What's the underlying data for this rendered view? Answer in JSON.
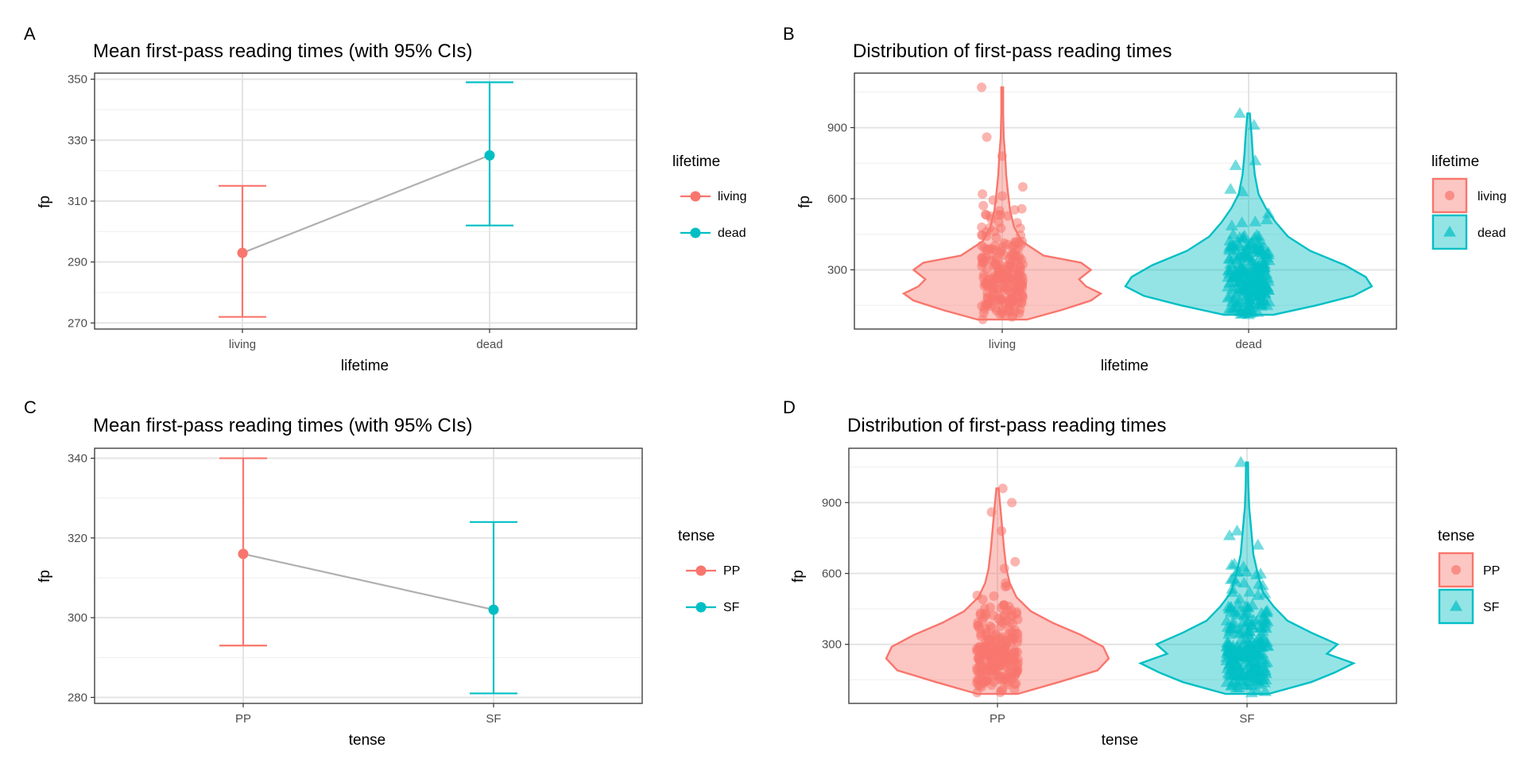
{
  "chart_data": [
    {
      "panel": "A",
      "type": "line",
      "title": "Mean first-pass reading times (with 95% CIs)",
      "xlabel": "lifetime",
      "ylabel": "fp",
      "categories": [
        "living",
        "dead"
      ],
      "yticks": [
        270,
        290,
        310,
        330,
        350
      ],
      "ylim": [
        268,
        352
      ],
      "points": [
        {
          "category": "living",
          "mean": 293,
          "lower": 272,
          "upper": 315,
          "color": "#F8766D"
        },
        {
          "category": "dead",
          "mean": 325,
          "lower": 302,
          "upper": 349,
          "color": "#00BFC4"
        }
      ],
      "legend": {
        "title": "lifetime",
        "entries": [
          "living",
          "dead"
        ],
        "placement": "right"
      }
    },
    {
      "panel": "B",
      "type": "violin",
      "title": "Distribution of first-pass reading times",
      "xlabel": "lifetime",
      "ylabel": "fp",
      "categories": [
        "living",
        "dead"
      ],
      "yticks": [
        300,
        600,
        900
      ],
      "ylim": [
        50,
        1130
      ],
      "groups": [
        {
          "category": "living",
          "color": "#F8766D",
          "shape": "circle",
          "min": 90,
          "max": 1070,
          "outliers": [
            1070,
            860,
            780,
            650,
            620
          ]
        },
        {
          "category": "dead",
          "color": "#00BFC4",
          "shape": "triangle",
          "min": 110,
          "max": 960,
          "outliers": [
            960,
            910,
            760,
            740,
            640
          ]
        }
      ],
      "legend": {
        "title": "lifetime",
        "entries": [
          "living",
          "dead"
        ],
        "placement": "right"
      }
    },
    {
      "panel": "C",
      "type": "line",
      "title": "Mean first-pass reading times (with 95% CIs)",
      "xlabel": "tense",
      "ylabel": "fp",
      "categories": [
        "PP",
        "SF"
      ],
      "yticks": [
        280,
        300,
        320,
        340
      ],
      "ylim": [
        278.5,
        342.5
      ],
      "points": [
        {
          "category": "PP",
          "mean": 316,
          "lower": 293,
          "upper": 340,
          "color": "#F8766D"
        },
        {
          "category": "SF",
          "mean": 302,
          "lower": 281,
          "upper": 324,
          "color": "#00BFC4"
        }
      ],
      "legend": {
        "title": "tense",
        "entries": [
          "PP",
          "SF"
        ],
        "placement": "right"
      }
    },
    {
      "panel": "D",
      "type": "violin",
      "title": "Distribution of first-pass reading times",
      "xlabel": "tense",
      "ylabel": "fp",
      "categories": [
        "PP",
        "SF"
      ],
      "yticks": [
        300,
        600,
        900
      ],
      "ylim": [
        50,
        1130
      ],
      "groups": [
        {
          "category": "PP",
          "color": "#F8766D",
          "shape": "circle",
          "min": 90,
          "max": 960,
          "outliers": [
            960,
            900,
            860,
            780,
            650
          ]
        },
        {
          "category": "SF",
          "color": "#00BFC4",
          "shape": "triangle",
          "min": 90,
          "max": 1070,
          "outliers": [
            1070,
            780,
            760,
            720,
            640
          ]
        }
      ],
      "legend": {
        "title": "tense",
        "entries": [
          "PP",
          "SF"
        ],
        "placement": "right"
      }
    }
  ],
  "panel_tags": [
    "A",
    "B",
    "C",
    "D"
  ],
  "colors": {
    "red": "#F8766D",
    "teal": "#00BFC4",
    "connector": "#b0b0b0"
  }
}
